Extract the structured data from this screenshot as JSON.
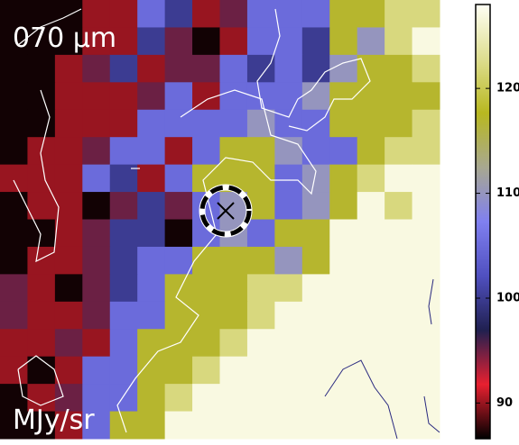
{
  "chart_data": {
    "type": "heatmap",
    "title": "070 μm",
    "colorbar_label": "MJy/sr",
    "z": [
      [
        87,
        87,
        87,
        90,
        90,
        105,
        100,
        90,
        95,
        105,
        105,
        105,
        117,
        117,
        122,
        122
      ],
      [
        87,
        87,
        87,
        90,
        90,
        100,
        95,
        87,
        90,
        105,
        105,
        100,
        117,
        110,
        122,
        127
      ],
      [
        87,
        87,
        90,
        95,
        100,
        90,
        95,
        95,
        105,
        100,
        105,
        100,
        110,
        117,
        117,
        122
      ],
      [
        87,
        87,
        90,
        90,
        90,
        95,
        105,
        90,
        105,
        105,
        105,
        110,
        117,
        117,
        117,
        117
      ],
      [
        87,
        87,
        90,
        90,
        90,
        105,
        105,
        105,
        105,
        110,
        105,
        105,
        117,
        117,
        117,
        122
      ],
      [
        87,
        90,
        90,
        95,
        105,
        105,
        90,
        105,
        117,
        117,
        110,
        105,
        105,
        117,
        122,
        122
      ],
      [
        90,
        90,
        90,
        105,
        100,
        90,
        105,
        117,
        117,
        117,
        105,
        110,
        117,
        122,
        127,
        127
      ],
      [
        87,
        90,
        90,
        87,
        95,
        100,
        95,
        105,
        110,
        117,
        105,
        110,
        117,
        127,
        122,
        127
      ],
      [
        87,
        87,
        90,
        95,
        100,
        100,
        87,
        105,
        110,
        105,
        117,
        117,
        127,
        127,
        127,
        127
      ],
      [
        87,
        90,
        90,
        95,
        100,
        105,
        105,
        117,
        117,
        117,
        110,
        117,
        127,
        127,
        127,
        127
      ],
      [
        95,
        90,
        87,
        95,
        100,
        105,
        117,
        117,
        117,
        122,
        122,
        127,
        127,
        127,
        127,
        127
      ],
      [
        95,
        90,
        90,
        95,
        105,
        105,
        117,
        117,
        117,
        122,
        127,
        127,
        127,
        127,
        127,
        127
      ],
      [
        90,
        90,
        95,
        90,
        105,
        117,
        117,
        117,
        122,
        127,
        127,
        127,
        127,
        127,
        127,
        127
      ],
      [
        90,
        87,
        90,
        105,
        105,
        117,
        117,
        122,
        127,
        127,
        127,
        127,
        127,
        127,
        127,
        127
      ],
      [
        87,
        90,
        95,
        105,
        105,
        117,
        122,
        127,
        127,
        127,
        127,
        127,
        127,
        127,
        127,
        127
      ],
      [
        87,
        87,
        90,
        105,
        117,
        117,
        127,
        127,
        127,
        127,
        127,
        127,
        127,
        127,
        127,
        127
      ]
    ],
    "zlim": [
      86.6,
      128
    ],
    "zticks": [
      90,
      100,
      110,
      120
    ],
    "colorscale": [
      "#000000",
      "#e82030",
      "#202050",
      "#5050c0",
      "#8080f0",
      "#a8a890",
      "#b8b820",
      "#dede90",
      "#fffff4"
    ]
  }
}
